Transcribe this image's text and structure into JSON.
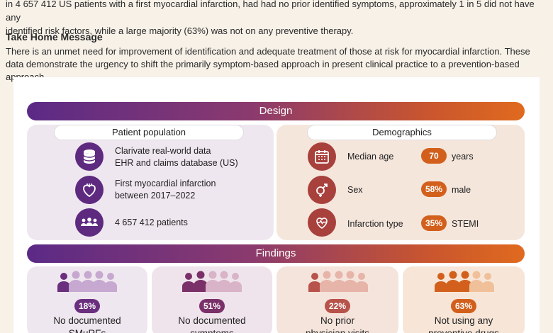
{
  "intro": {
    "line1": "in 4 657 412 US patients with a first myocardial infarction, had had no prior identified symptoms, approximately 1 in 5 did not have any",
    "line2": "identified risk factors, while a large majority (63%) was not on any preventive therapy."
  },
  "take_home": {
    "title": "Take Home Message",
    "body": "There is an unmet need for improvement of identification and adequate treatment of those at risk for myocardial infarction. These data demonstrate the urgency to shift the primarily symptom-based approach in present clinical practice to a prevention-based approach."
  },
  "design": {
    "title": "Design",
    "patient_population": {
      "label": "Patient population",
      "items": [
        {
          "icon": "database-icon",
          "line1": "Clarivate real-world data",
          "line2": "EHR and claims database (US)"
        },
        {
          "icon": "heart-icon",
          "line1": "First myocardial infarction",
          "line2": "between 2017–2022"
        },
        {
          "icon": "group-icon",
          "line1": "4 657 412 patients",
          "line2": ""
        }
      ]
    },
    "demographics": {
      "label": "Demographics",
      "items": [
        {
          "icon": "calendar-icon",
          "label": "Median age",
          "value": "70",
          "unit": "years"
        },
        {
          "icon": "gender-icon",
          "label": "Sex",
          "value": "58%",
          "unit": "male"
        },
        {
          "icon": "heart-monitor-icon",
          "label": "Infarction type",
          "value": "35%",
          "unit": "STEMI"
        }
      ]
    }
  },
  "findings": {
    "title": "Findings",
    "cards": [
      {
        "value": "18%",
        "line1": "No documented",
        "line2": "SMuRFs",
        "color": "#6a2f7e"
      },
      {
        "value": "51%",
        "line1": "No documented",
        "line2": "symptoms",
        "color": "#7a3068"
      },
      {
        "value": "22%",
        "line1": "No prior",
        "line2": "physician visits",
        "color": "#b7534a"
      },
      {
        "value": "63%",
        "line1": "Not using any",
        "line2": "preventive drugs",
        "color": "#d2601c"
      }
    ]
  },
  "colors": {
    "purple": "#5b2a86",
    "orange": "#e06a1e",
    "dark_red": "#b2463c"
  }
}
